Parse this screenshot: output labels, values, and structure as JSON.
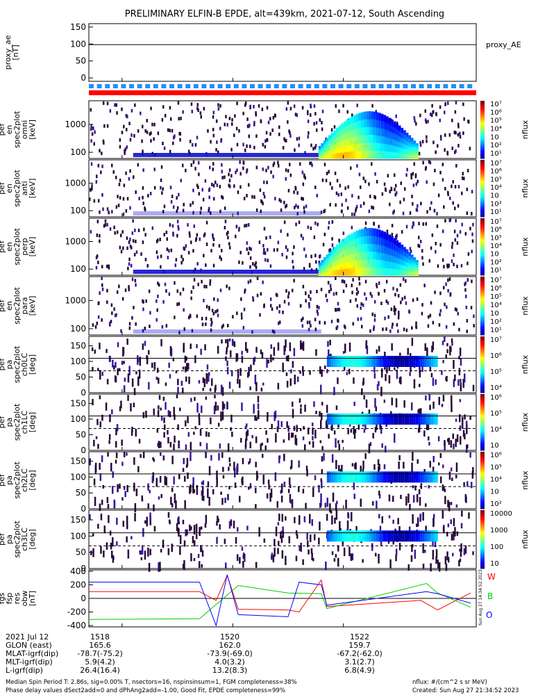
{
  "title": "PRELIMINARY ELFIN-B EPDE, alt=439km, 2021-07-12, South Ascending",
  "legends": {
    "proxy": "proxy_AE",
    "w": "W",
    "b": "B",
    "o": "O",
    "nflux": "nflux",
    "side_stamp": "Sun Aug 27 14:34:52 2023"
  },
  "colors": {
    "red": "#ff0000",
    "blue": "#0000ff",
    "green": "#00cc00",
    "status_blue": "#1e90ff",
    "status_red": "#ff0000",
    "spec_dark": "#2a0a3a"
  },
  "footer": {
    "date": "2021 Jul 12",
    "row_labels": [
      "GLON (east)",
      "MLAT-igrf(dip)",
      "MLT-igrf(dip)",
      "L-igrf(dip)"
    ],
    "tick_times": [
      "1518",
      "1520",
      "1522"
    ],
    "columns": [
      [
        "165.6",
        "-78.7(-75.2)",
        "5.9(4.2)",
        "26.4(16.4)"
      ],
      [
        "162.0",
        "-73.9(-69.0)",
        "4.0(3.2)",
        "13.2(8.3)"
      ],
      [
        "159.7",
        "-67.2(-62.0)",
        "3.1(2.7)",
        "6.8(4.9)"
      ]
    ],
    "note1": "Median Spin Period T: 2.86s, sig=0.00% T, nsectors=16, nspinsinsum=1, FGM completeness=38%",
    "note2": "Phase delay values dSect2add=0 and dPhAng2add=-1.00, Good Fit, EPDE completeness=99%",
    "units": "nflux: #/(cm^2 s sr MeV)",
    "created": "Created: Sun Aug 27 21:34:52 2023"
  },
  "chart_data": [
    {
      "type": "line",
      "ylabel": [
        "proxy_ae",
        "[nT]"
      ],
      "ylim": [
        -10,
        160
      ],
      "yticks": [
        "150",
        "100",
        "50",
        "0"
      ],
      "series": [
        {
          "name": "proxy_AE",
          "x": [
            1517.4,
            1524.4
          ],
          "values": [
            98,
            98
          ]
        }
      ]
    },
    {
      "type": "heatmap",
      "ylabel": [
        "elb",
        "pef",
        "en",
        "spec2plot",
        "omni",
        "[keV]"
      ],
      "yscale": "log",
      "ylim": [
        60,
        7000
      ],
      "yticks": [
        "1000",
        "100"
      ],
      "colorbar": [
        "10⁷",
        "10⁶",
        "10⁵",
        "10⁴",
        "10⁳",
        "10²",
        "10¹"
      ]
    },
    {
      "type": "heatmap",
      "ylabel": [
        "elb",
        "pef",
        "en",
        "spec2plot",
        "anti",
        "[keV]"
      ],
      "yscale": "log",
      "ylim": [
        60,
        7000
      ],
      "yticks": [
        "1000",
        "100"
      ],
      "colorbar": [
        "10⁷",
        "10⁶",
        "10⁵",
        "10⁴",
        "10⁳",
        "10²",
        "10¹"
      ]
    },
    {
      "type": "heatmap",
      "ylabel": [
        "elb",
        "pef",
        "en",
        "spec2plot",
        "perp",
        "[keV]"
      ],
      "yscale": "log",
      "ylim": [
        60,
        7000
      ],
      "yticks": [
        "1000",
        "100"
      ],
      "colorbar": [
        "10⁷",
        "10⁶",
        "10⁵",
        "10⁴",
        "10⁳",
        "10²",
        "10¹"
      ]
    },
    {
      "type": "heatmap",
      "ylabel": [
        "elb",
        "pef",
        "en",
        "spec2plot",
        "para",
        "[keV]"
      ],
      "yscale": "log",
      "ylim": [
        60,
        7000
      ],
      "yticks": [
        "1000",
        "100"
      ],
      "colorbar": [
        "10⁷",
        "10⁶",
        "10⁵",
        "10⁴",
        "10⁳",
        "10²",
        "10¹"
      ]
    },
    {
      "type": "heatmap",
      "ylabel": [
        "elb",
        "pef",
        "pa",
        "spec2plot",
        "ch0LC",
        "[deg]"
      ],
      "ylim": [
        0,
        180
      ],
      "yticks": [
        "150",
        "100",
        "50",
        "0"
      ],
      "colorbar": [
        "10⁷",
        "10⁶",
        "10⁵",
        "10⁴"
      ]
    },
    {
      "type": "heatmap",
      "ylabel": [
        "elb",
        "pef",
        "pa",
        "spec2plot",
        "ch1LC",
        "[deg]"
      ],
      "ylim": [
        0,
        180
      ],
      "yticks": [
        "150",
        "100",
        "50",
        "0"
      ],
      "colorbar": [
        "10⁶",
        "10⁵",
        "10⁴",
        "10⁳"
      ]
    },
    {
      "type": "heatmap",
      "ylabel": [
        "elb",
        "pef",
        "pa",
        "spec2plot",
        "ch2LC",
        "[deg]"
      ],
      "ylim": [
        0,
        180
      ],
      "yticks": [
        "150",
        "100",
        "50",
        "0"
      ],
      "colorbar": [
        "10⁶",
        "10⁵",
        "10⁴",
        "10⁳",
        "10²"
      ]
    },
    {
      "type": "heatmap",
      "ylabel": [
        "elb",
        "pef",
        "pa",
        "spec2plot",
        "ch3LC",
        "[deg]"
      ],
      "ylim": [
        0,
        180
      ],
      "yticks": [
        "150",
        "100",
        "50",
        "0"
      ],
      "colorbar": [
        "10000",
        "1000",
        "100",
        "10"
      ]
    },
    {
      "type": "line",
      "ylabel": [
        "elb",
        "fgs",
        "fsp",
        "res",
        "obw",
        "[nT]"
      ],
      "ylim": [
        -420,
        420
      ],
      "yticks": [
        "400",
        "200",
        "0",
        "-200",
        "-400"
      ],
      "series": [
        {
          "name": "W",
          "color": "#ff0000",
          "x": [
            1517.4,
            1519.4,
            1519.7,
            1519.9,
            1520.1,
            1521.0,
            1521.2,
            1521.6,
            1521.7,
            1523.4,
            1523.7,
            1524.3
          ],
          "values": [
            100,
            100,
            -30,
            340,
            -160,
            -170,
            -200,
            270,
            -120,
            -30,
            -170,
            80
          ]
        },
        {
          "name": "B",
          "color": "#00cc00",
          "x": [
            1517.4,
            1519.4,
            1520.1,
            1521.0,
            1521.6,
            1521.7,
            1523.5,
            1523.7,
            1524.3
          ],
          "values": [
            -310,
            -300,
            190,
            80,
            70,
            -150,
            220,
            80,
            -130
          ]
        },
        {
          "name": "O",
          "color": "#0000ff",
          "x": [
            1517.4,
            1519.4,
            1519.7,
            1519.9,
            1520.1,
            1521.0,
            1521.2,
            1521.6,
            1521.7,
            1523.5,
            1523.7,
            1524.3
          ],
          "values": [
            240,
            240,
            -400,
            350,
            -240,
            -270,
            240,
            200,
            -100,
            100,
            70,
            -70
          ]
        }
      ]
    }
  ]
}
